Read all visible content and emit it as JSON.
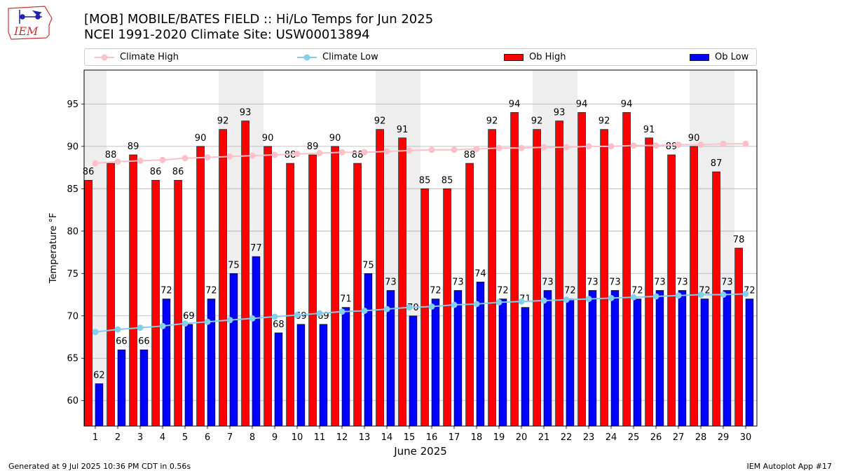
{
  "header": {
    "title_line1": "[MOB] MOBILE/BATES FIELD :: Hi/Lo Temps for Jun 2025",
    "title_line2": "NCEI 1991-2020 Climate Site: USW00013894",
    "logo_text": "IEM"
  },
  "footer": {
    "generated": "Generated at 9 Jul 2025 10:36 PM CDT in 0.56s",
    "app": "IEM Autoplot App #17"
  },
  "colors": {
    "ob_high": "#ff0000",
    "ob_low": "#0000ff",
    "climate_high": "#ffc0cb",
    "climate_low": "#87ceeb",
    "weekend_shade": "#eeeeee",
    "grid": "#b0b0b0"
  },
  "chart_data": {
    "type": "bar",
    "title": "[MOB] MOBILE/BATES FIELD :: Hi/Lo Temps for Jun 2025",
    "subtitle": "NCEI 1991-2020 Climate Site: USW00013894",
    "xlabel": "June 2025",
    "ylabel": "Temperature °F",
    "ylim": [
      57,
      99
    ],
    "yticks": [
      60,
      65,
      70,
      75,
      80,
      85,
      90,
      95
    ],
    "grid": true,
    "legend_position": "top",
    "categories": [
      "1",
      "2",
      "3",
      "4",
      "5",
      "6",
      "7",
      "8",
      "9",
      "10",
      "11",
      "12",
      "13",
      "14",
      "15",
      "16",
      "17",
      "18",
      "19",
      "20",
      "21",
      "22",
      "23",
      "24",
      "25",
      "26",
      "27",
      "28",
      "29",
      "30"
    ],
    "shaded_days": [
      1,
      7,
      8,
      14,
      15,
      21,
      22,
      28,
      29
    ],
    "legend": [
      "Climate High",
      "Climate Low",
      "Ob High",
      "Ob Low"
    ],
    "series": [
      {
        "name": "Ob High",
        "kind": "bar",
        "values": [
          86,
          88,
          89,
          86,
          86,
          90,
          92,
          93,
          90,
          88,
          89,
          90,
          88,
          92,
          91,
          85,
          85,
          88,
          92,
          94,
          92,
          93,
          94,
          92,
          94,
          91,
          89,
          90,
          87,
          78
        ]
      },
      {
        "name": "Ob Low",
        "kind": "bar",
        "values": [
          62,
          66,
          66,
          72,
          69,
          72,
          75,
          77,
          68,
          69,
          69,
          71,
          75,
          73,
          70,
          72,
          73,
          74,
          72,
          71,
          73,
          72,
          73,
          73,
          72,
          73,
          73,
          72,
          73,
          72
        ]
      },
      {
        "name": "Climate High",
        "kind": "line",
        "values": [
          88.0,
          88.2,
          88.3,
          88.4,
          88.6,
          88.7,
          88.8,
          88.9,
          89.0,
          89.1,
          89.2,
          89.3,
          89.3,
          89.4,
          89.5,
          89.6,
          89.6,
          89.7,
          89.8,
          89.8,
          89.9,
          89.9,
          90.0,
          90.0,
          90.1,
          90.1,
          90.2,
          90.2,
          90.3,
          90.3
        ]
      },
      {
        "name": "Climate Low",
        "kind": "line",
        "values": [
          68.1,
          68.4,
          68.6,
          68.8,
          69.1,
          69.3,
          69.5,
          69.7,
          69.9,
          70.1,
          70.3,
          70.5,
          70.6,
          70.8,
          71.0,
          71.1,
          71.3,
          71.4,
          71.6,
          71.7,
          71.8,
          71.9,
          72.0,
          72.1,
          72.2,
          72.3,
          72.4,
          72.5,
          72.5,
          72.6
        ]
      }
    ]
  }
}
